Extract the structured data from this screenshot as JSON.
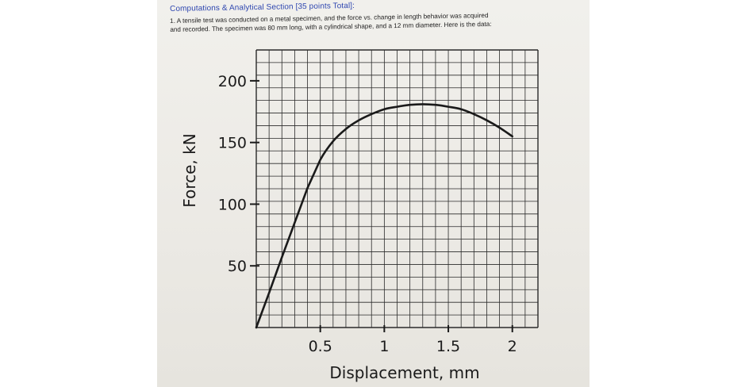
{
  "document": {
    "section_title": "Computations & Analytical Section [35 points Total]:",
    "problem_line_1": "1. A tensile test was conducted on a metal specimen, and the force vs. change in length behavior was acquired",
    "problem_line_2": "and recorded. The specimen was 80 mm long, with a cylindrical shape, and a 12 mm diameter. Here is the data:"
  },
  "chart_data": {
    "type": "line",
    "xlabel": "Displacement, mm",
    "ylabel": "Force, kN",
    "xlim": [
      0,
      2.2
    ],
    "ylim": [
      0,
      225
    ],
    "x_ticks": [
      0.5,
      1,
      1.5,
      2
    ],
    "x_tick_labels": [
      "0.5",
      "1",
      "1.5",
      "2"
    ],
    "y_ticks": [
      50,
      100,
      150,
      200
    ],
    "y_tick_labels": [
      "50",
      "100",
      "150",
      "200"
    ],
    "grid": true,
    "line_color": "#1a1a1a",
    "grid_color": "#2a2a2a",
    "series": [
      {
        "x": [
          0,
          0.1,
          0.2,
          0.3,
          0.4,
          0.5,
          0.6,
          0.7,
          0.8,
          0.9,
          1.0,
          1.1,
          1.2,
          1.3,
          1.4,
          1.5,
          1.6,
          1.7,
          1.8,
          1.9,
          2.0
        ],
        "y": [
          0,
          28,
          57,
          85,
          113,
          136,
          151,
          161,
          168,
          173,
          177,
          179,
          180.5,
          181,
          180.5,
          179,
          177,
          173,
          168,
          162,
          155
        ]
      }
    ]
  }
}
